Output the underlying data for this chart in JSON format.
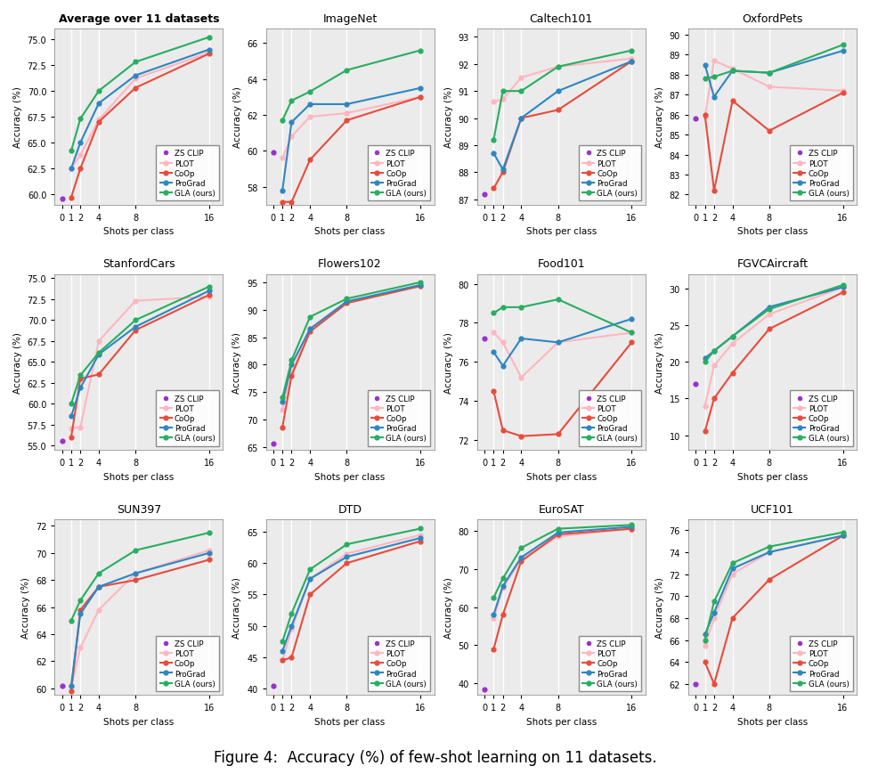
{
  "titles_order": [
    "Average over 11 datasets",
    "ImageNet",
    "Caltech101",
    "OxfordPets",
    "StanfordCars",
    "Flowers102",
    "Food101",
    "FGVCAircraft",
    "SUN397",
    "DTD",
    "EuroSAT",
    "UCF101"
  ],
  "subplot_data": {
    "Average over 11 datasets": {
      "ylim": [
        59.0,
        76.0
      ],
      "yticks": [
        60.0,
        62.5,
        65.0,
        67.5,
        70.0,
        72.5,
        75.0
      ],
      "bold": true,
      "ZS_CLIP": [
        59.6
      ],
      "PLOT": [
        62.5,
        63.8,
        67.2,
        71.2,
        73.7
      ],
      "CoOp": [
        59.7,
        62.5,
        67.0,
        70.3,
        73.6
      ],
      "ProGrad": [
        62.5,
        65.0,
        68.8,
        71.5,
        74.0
      ],
      "GLA": [
        64.2,
        67.3,
        70.0,
        72.8,
        75.2
      ]
    },
    "ImageNet": {
      "ylim": [
        57.0,
        66.8
      ],
      "yticks": [
        58,
        60,
        62,
        64,
        66
      ],
      "bold": false,
      "ZS_CLIP": [
        59.9
      ],
      "PLOT": [
        59.6,
        60.8,
        61.9,
        62.1,
        63.0
      ],
      "CoOp": [
        57.15,
        57.15,
        59.5,
        61.7,
        63.0
      ],
      "ProGrad": [
        57.8,
        61.6,
        62.6,
        62.6,
        63.5
      ],
      "GLA": [
        61.7,
        62.8,
        63.3,
        64.5,
        65.6
      ]
    },
    "Caltech101": {
      "ylim": [
        86.8,
        93.3
      ],
      "yticks": [
        87,
        88,
        89,
        90,
        91,
        92,
        93
      ],
      "bold": false,
      "ZS_CLIP": [
        87.2
      ],
      "PLOT": [
        90.6,
        90.7,
        91.5,
        91.9,
        92.2
      ],
      "CoOp": [
        87.4,
        88.0,
        90.0,
        90.3,
        92.1
      ],
      "ProGrad": [
        88.7,
        88.1,
        90.0,
        91.0,
        92.1
      ],
      "GLA": [
        89.2,
        91.0,
        91.0,
        91.9,
        92.5
      ]
    },
    "OxfordPets": {
      "ylim": [
        81.5,
        90.3
      ],
      "yticks": [
        82,
        83,
        84,
        85,
        86,
        87,
        88,
        89,
        90
      ],
      "bold": false,
      "ZS_CLIP": [
        85.8
      ],
      "PLOT": [
        85.9,
        88.7,
        88.3,
        87.4,
        87.2
      ],
      "CoOp": [
        86.0,
        82.2,
        86.7,
        85.2,
        87.1
      ],
      "ProGrad": [
        88.5,
        86.9,
        88.2,
        88.1,
        89.2
      ],
      "GLA": [
        87.8,
        87.9,
        88.2,
        88.1,
        89.5
      ]
    },
    "StanfordCars": {
      "ylim": [
        54.5,
        75.5
      ],
      "yticks": [
        55.0,
        57.5,
        60.0,
        62.5,
        65.0,
        67.5,
        70.0,
        72.5,
        75.0
      ],
      "bold": false,
      "ZS_CLIP": [
        55.6
      ],
      "PLOT": [
        57.1,
        57.2,
        67.5,
        72.3,
        72.8
      ],
      "CoOp": [
        56.0,
        63.0,
        63.5,
        68.8,
        73.0
      ],
      "ProGrad": [
        58.5,
        61.9,
        65.9,
        69.2,
        73.5
      ],
      "GLA": [
        60.0,
        63.4,
        66.1,
        70.0,
        74.0
      ]
    },
    "Flowers102": {
      "ylim": [
        64.5,
        96.5
      ],
      "yticks": [
        65,
        70,
        75,
        80,
        85,
        90,
        95
      ],
      "bold": false,
      "ZS_CLIP": [
        65.6
      ],
      "PLOT": [
        71.8,
        78.5,
        86.5,
        91.5,
        94.3
      ],
      "CoOp": [
        68.6,
        78.0,
        86.0,
        91.2,
        94.3
      ],
      "ProGrad": [
        73.2,
        80.0,
        86.5,
        91.5,
        94.5
      ],
      "GLA": [
        74.0,
        80.8,
        88.7,
        92.0,
        95.0
      ]
    },
    "Food101": {
      "ylim": [
        71.5,
        80.5
      ],
      "yticks": [
        72,
        74,
        76,
        78,
        80
      ],
      "bold": false,
      "ZS_CLIP": [
        77.2
      ],
      "PLOT": [
        77.5,
        77.0,
        75.2,
        77.0,
        77.5
      ],
      "CoOp": [
        74.5,
        72.5,
        72.2,
        72.3,
        77.0
      ],
      "ProGrad": [
        76.5,
        75.8,
        77.2,
        77.0,
        78.2
      ],
      "GLA": [
        78.5,
        78.8,
        78.8,
        79.2,
        77.5
      ]
    },
    "FGVCAircraft": {
      "ylim": [
        8.0,
        32.0
      ],
      "yticks": [
        10,
        15,
        20,
        25,
        30
      ],
      "bold": false,
      "ZS_CLIP": [
        17.0
      ],
      "PLOT": [
        14.0,
        19.5,
        22.5,
        26.5,
        30.2
      ],
      "CoOp": [
        10.5,
        15.0,
        18.5,
        24.5,
        29.5
      ],
      "ProGrad": [
        20.5,
        21.5,
        23.5,
        27.5,
        30.2
      ],
      "GLA": [
        20.0,
        21.5,
        23.5,
        27.2,
        30.5
      ]
    },
    "SUN397": {
      "ylim": [
        59.5,
        72.5
      ],
      "yticks": [
        60,
        62,
        64,
        66,
        68,
        70,
        72
      ],
      "bold": false,
      "ZS_CLIP": [
        60.2
      ],
      "PLOT": [
        60.1,
        63.0,
        65.8,
        68.5,
        70.2
      ],
      "CoOp": [
        59.8,
        65.8,
        67.5,
        68.0,
        69.5
      ],
      "ProGrad": [
        60.2,
        65.5,
        67.5,
        68.5,
        70.0
      ],
      "GLA": [
        65.0,
        66.5,
        68.5,
        70.2,
        71.5
      ]
    },
    "DTD": {
      "ylim": [
        39.0,
        67.0
      ],
      "yticks": [
        40,
        45,
        50,
        55,
        60,
        65
      ],
      "bold": false,
      "ZS_CLIP": [
        40.4
      ],
      "PLOT": [
        44.5,
        49.5,
        57.5,
        61.5,
        64.5
      ],
      "CoOp": [
        44.5,
        45.0,
        55.0,
        60.0,
        63.5
      ],
      "ProGrad": [
        46.0,
        50.0,
        57.5,
        61.0,
        64.0
      ],
      "GLA": [
        47.5,
        52.0,
        59.0,
        63.0,
        65.5
      ]
    },
    "EuroSAT": {
      "ylim": [
        37.0,
        83.0
      ],
      "yticks": [
        40,
        50,
        60,
        70,
        80
      ],
      "bold": false,
      "ZS_CLIP": [
        38.5
      ],
      "PLOT": [
        57.0,
        65.0,
        72.5,
        78.5,
        80.5
      ],
      "CoOp": [
        49.0,
        58.0,
        72.0,
        79.0,
        80.5
      ],
      "ProGrad": [
        58.0,
        65.5,
        73.0,
        79.5,
        81.0
      ],
      "GLA": [
        62.5,
        67.5,
        75.5,
        80.5,
        81.5
      ]
    },
    "UCF101": {
      "ylim": [
        61.0,
        77.0
      ],
      "yticks": [
        62,
        64,
        66,
        68,
        70,
        72,
        74,
        76
      ],
      "bold": false,
      "ZS_CLIP": [
        62.0
      ],
      "PLOT": [
        65.5,
        68.0,
        72.0,
        74.0,
        75.5
      ],
      "CoOp": [
        64.0,
        62.0,
        68.0,
        71.5,
        75.5
      ],
      "ProGrad": [
        66.5,
        68.5,
        72.5,
        74.0,
        75.5
      ],
      "GLA": [
        66.0,
        69.5,
        73.0,
        74.5,
        75.8
      ]
    }
  },
  "colors": {
    "ZS_CLIP": "#9932CC",
    "PLOT": "#FFB6C1",
    "CoOp": "#E74C3C",
    "ProGrad": "#2E86C1",
    "GLA": "#27AE60"
  },
  "bg_color": "#EBEBEB",
  "fig_caption": "Figure 4:  Accuracy (%) of few-shot learning on 11 datasets."
}
